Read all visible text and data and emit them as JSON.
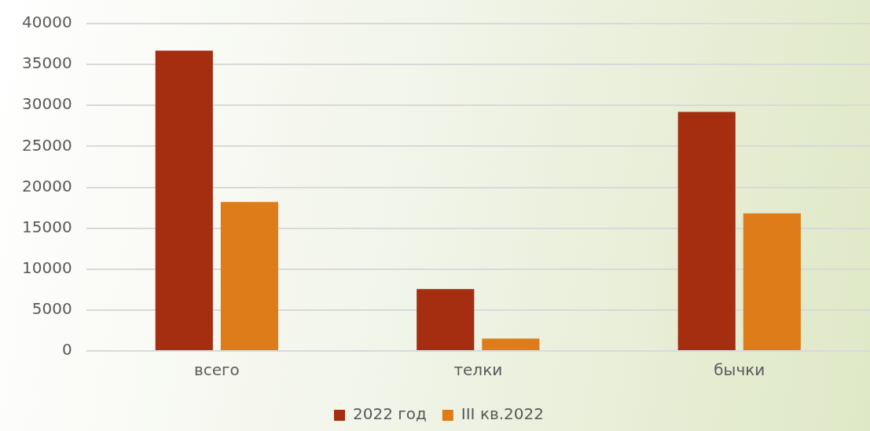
{
  "chart_data": {
    "type": "bar",
    "categories": [
      "всего",
      "телки",
      "бычки"
    ],
    "series": [
      {
        "name": "2022 год",
        "color": "#a52d10",
        "values": [
          36700,
          7550,
          29200
        ]
      },
      {
        "name": "III кв.2022",
        "color": "#de7c19",
        "values": [
          18200,
          1500,
          16800
        ]
      }
    ],
    "ylim": [
      0,
      40000
    ],
    "yticks": [
      0,
      5000,
      10000,
      15000,
      20000,
      25000,
      30000,
      35000,
      40000
    ],
    "grid": "y",
    "legend": "bottom"
  }
}
